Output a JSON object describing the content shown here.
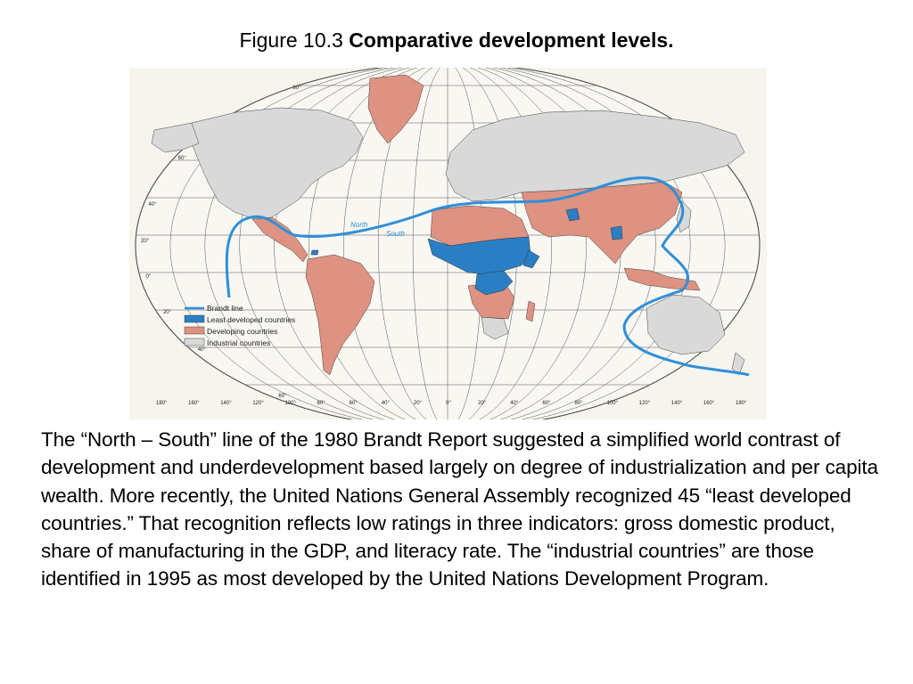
{
  "title": {
    "prefix": "Figure 10.3",
    "bold": "Comparative development levels."
  },
  "map": {
    "legend": [
      {
        "label": "Brandt line",
        "kind": "line",
        "color": "#2f8fd8"
      },
      {
        "label": "Least developed countries",
        "kind": "swatch",
        "color": "#2a7fc4"
      },
      {
        "label": "Developing countries",
        "kind": "swatch",
        "color": "#dd9282"
      },
      {
        "label": "Industrial countries",
        "kind": "swatch",
        "color": "#d9d9d9"
      }
    ],
    "line_labels": {
      "north": "North",
      "south": "South"
    },
    "lat_labels": [
      "80°",
      "60°",
      "40°",
      "20°",
      "0°",
      "20°",
      "40°",
      "60°"
    ],
    "lon_labels": [
      "180°",
      "160°",
      "140°",
      "120°",
      "100°",
      "80°",
      "60°",
      "40°",
      "20°",
      "0°",
      "20°",
      "40°",
      "60°",
      "80°",
      "100°",
      "120°",
      "140°",
      "160°",
      "180°"
    ],
    "colors": {
      "industrial": "#d9d9d9",
      "developing": "#dd9282",
      "least_developed": "#2a7fc4",
      "brandt_line": "#2f8fd8",
      "ocean": "#f7f4ee",
      "grid": "#333333"
    }
  },
  "caption": "The “North – South” line of the 1980 Brandt Report suggested a simplified world contrast of development and underdevelopment based largely on degree of industrialization and per capita wealth. More recently, the United Nations General Assembly recognized 45 “least developed countries.” That recognition reflects low ratings in three indicators: gross domestic product, share of manufacturing in the GDP, and literacy rate. The “industrial countries” are those identified in 1995 as most developed by the United Nations Development Program."
}
